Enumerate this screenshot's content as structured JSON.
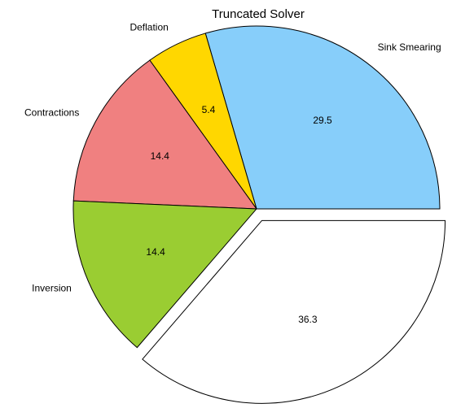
{
  "chart_data": {
    "type": "pie",
    "title": "Truncated Solver",
    "categories": [
      "Sink Smearing",
      "Deflation",
      "Contractions",
      "Inversion",
      null
    ],
    "values": [
      29.5,
      5.4,
      14.4,
      14.4,
      36.3
    ],
    "colors": [
      "#87cefa",
      "#ffd700",
      "#f08080",
      "#9acd32",
      "#ffffff"
    ],
    "explode": [
      0,
      0,
      0,
      0,
      0.07
    ]
  }
}
